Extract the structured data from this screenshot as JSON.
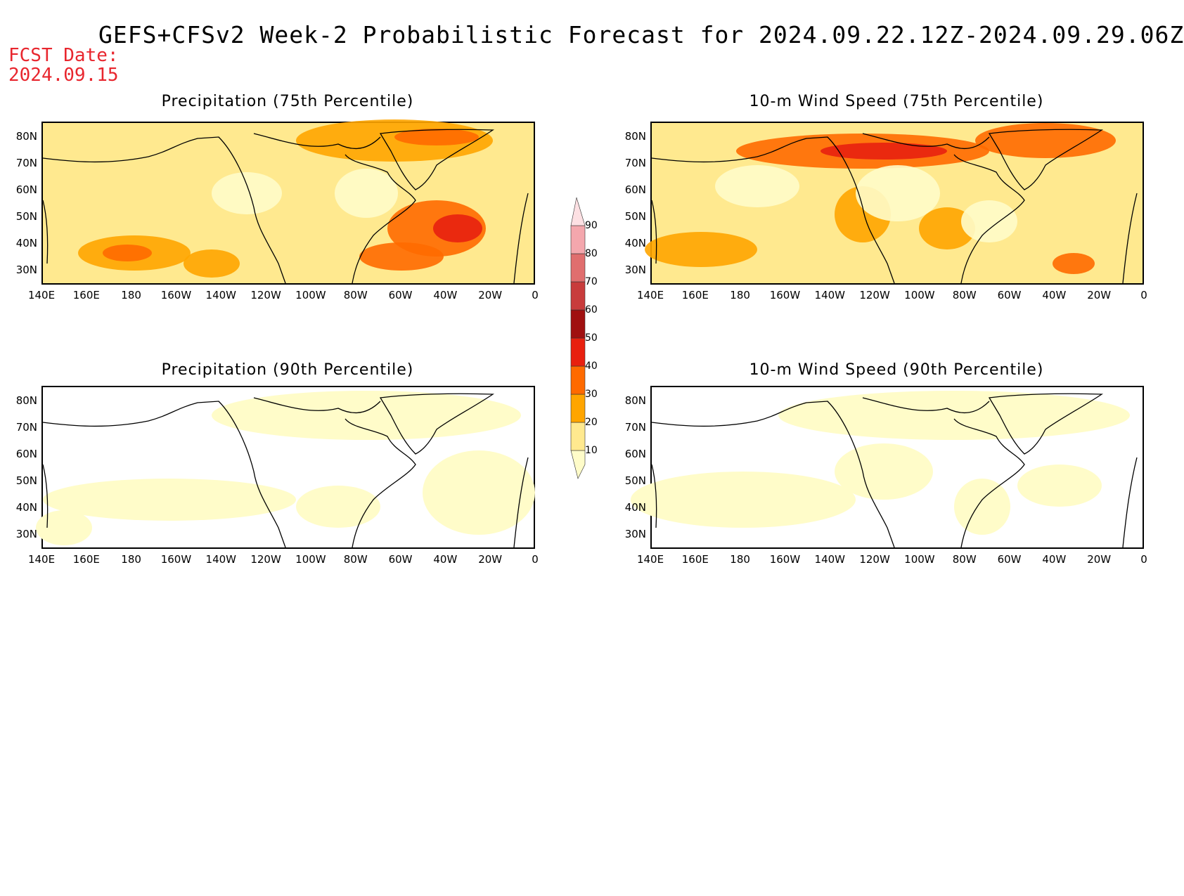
{
  "header": {
    "title": "GEFS+CFSv2 Week-2 Probabilistic Forecast for 2024.09.22.12Z-2024.09.29.06Z",
    "fcst_label": "FCST Date:",
    "fcst_date": "2024.09.15"
  },
  "panels": [
    {
      "title": "Precipitation (75th Percentile)",
      "variable": "precipitation",
      "percentile": 75,
      "intensity": "high"
    },
    {
      "title": "10-m Wind Speed (75th Percentile)",
      "variable": "wind",
      "percentile": 75,
      "intensity": "high"
    },
    {
      "title": "Precipitation (90th Percentile)",
      "variable": "precipitation",
      "percentile": 90,
      "intensity": "low"
    },
    {
      "title": "10-m Wind Speed (90th Percentile)",
      "variable": "wind",
      "percentile": 90,
      "intensity": "low"
    }
  ],
  "axes": {
    "lat_labels": [
      "80N",
      "70N",
      "60N",
      "50N",
      "40N",
      "30N"
    ],
    "lon_labels": [
      "140E",
      "160E",
      "180",
      "160W",
      "140W",
      "120W",
      "100W",
      "80W",
      "60W",
      "40W",
      "20W",
      "0"
    ]
  },
  "colorbar": {
    "levels": [
      "10",
      "20",
      "30",
      "40",
      "50",
      "60",
      "70",
      "80",
      "90"
    ],
    "colors": [
      "#fffcc9",
      "#ffe98f",
      "#ffa500",
      "#ff6a00",
      "#e8200f",
      "#a01010",
      "#c83c3c",
      "#e06e6e",
      "#f4a7ad",
      "#fde0e3"
    ]
  }
}
